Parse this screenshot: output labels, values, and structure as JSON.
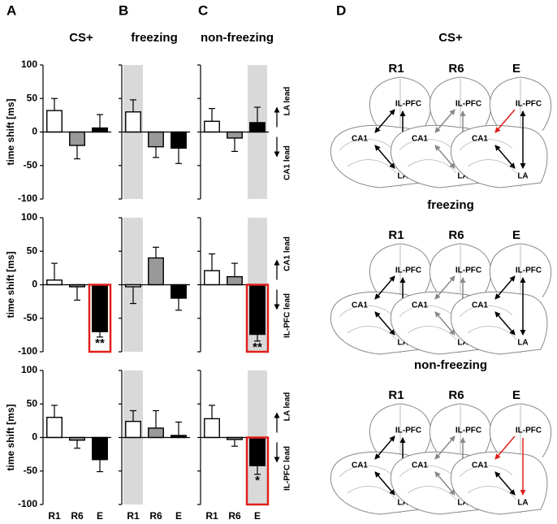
{
  "panel_labels": [
    "A",
    "B",
    "C",
    "D"
  ],
  "column_titles": [
    "CS+",
    "freezing",
    "non-freezing"
  ],
  "chart_data": [
    {
      "type": "bar",
      "categories": [
        null,
        null,
        null
      ],
      "values": [
        32,
        -20,
        6
      ],
      "errors": [
        18,
        20,
        20
      ],
      "colors": [
        "#ffffff",
        "#999999",
        "#000000"
      ],
      "ylim": [
        -100,
        100
      ],
      "yticks": [
        -100,
        -50,
        0,
        50,
        100
      ],
      "show_ytick_labels": true,
      "ylabel": "time shift [ms]"
    },
    {
      "type": "bar",
      "categories": [
        null,
        null,
        null
      ],
      "values": [
        30,
        -22,
        -24
      ],
      "errors": [
        18,
        16,
        23
      ],
      "colors": [
        "#ffffff",
        "#999999",
        "#000000"
      ],
      "ylim": [
        -100,
        100
      ],
      "yticks": [
        -100,
        -50,
        0,
        50,
        100
      ],
      "show_ytick_labels": false,
      "shade": 0
    },
    {
      "type": "bar",
      "categories": [
        null,
        null,
        null
      ],
      "values": [
        16,
        -9,
        14
      ],
      "errors": [
        19,
        20,
        23
      ],
      "colors": [
        "#ffffff",
        "#999999",
        "#000000"
      ],
      "ylim": [
        -100,
        100
      ],
      "yticks": [
        -100,
        -50,
        0,
        50,
        100
      ],
      "show_ytick_labels": false,
      "shade": 2,
      "lead_up": "LA lead",
      "lead_down": "CA1 lead"
    },
    {
      "type": "bar",
      "categories": [
        null,
        null,
        null
      ],
      "values": [
        7,
        -3,
        -70
      ],
      "errors": [
        25,
        20,
        8
      ],
      "colors": [
        "#ffffff",
        "#999999",
        "#000000"
      ],
      "ylim": [
        -100,
        100
      ],
      "yticks": [
        -100,
        -50,
        0,
        50,
        100
      ],
      "show_ytick_labels": true,
      "ylabel": "time shift [ms]",
      "highlight": 2,
      "annotation": "**"
    },
    {
      "type": "bar",
      "categories": [
        null,
        null,
        null
      ],
      "values": [
        -3,
        40,
        -20
      ],
      "errors": [
        25,
        16,
        18
      ],
      "colors": [
        "#ffffff",
        "#999999",
        "#000000"
      ],
      "ylim": [
        -100,
        100
      ],
      "yticks": [
        -100,
        -50,
        0,
        50,
        100
      ],
      "show_ytick_labels": false,
      "shade": 0
    },
    {
      "type": "bar",
      "categories": [
        null,
        null,
        null
      ],
      "values": [
        21,
        12,
        -74
      ],
      "errors": [
        25,
        20,
        10
      ],
      "colors": [
        "#ffffff",
        "#999999",
        "#000000"
      ],
      "ylim": [
        -100,
        100
      ],
      "yticks": [
        -100,
        -50,
        0,
        50,
        100
      ],
      "show_ytick_labels": false,
      "shade": 2,
      "highlight": 2,
      "annotation": "**",
      "lead_up": "CA1 lead",
      "lead_down": "IL-PFC lead"
    },
    {
      "type": "bar",
      "categories": [
        "R1",
        "R6",
        "E"
      ],
      "values": [
        30,
        -4,
        -33
      ],
      "errors": [
        18,
        12,
        18
      ],
      "colors": [
        "#ffffff",
        "#999999",
        "#000000"
      ],
      "ylim": [
        -100,
        100
      ],
      "yticks": [
        -100,
        -50,
        0,
        50,
        100
      ],
      "show_ytick_labels": true,
      "ylabel": "time shift [ms]"
    },
    {
      "type": "bar",
      "categories": [
        "R1",
        "R6",
        "E"
      ],
      "values": [
        24,
        14,
        3
      ],
      "errors": [
        16,
        26,
        20
      ],
      "colors": [
        "#ffffff",
        "#999999",
        "#000000"
      ],
      "ylim": [
        -100,
        100
      ],
      "yticks": [
        -100,
        -50,
        0,
        50,
        100
      ],
      "show_ytick_labels": false,
      "shade": 0
    },
    {
      "type": "bar",
      "categories": [
        "R1",
        "R6",
        "E"
      ],
      "values": [
        28,
        -3,
        -42
      ],
      "errors": [
        20,
        10,
        13
      ],
      "colors": [
        "#ffffff",
        "#999999",
        "#000000"
      ],
      "ylim": [
        -100,
        100
      ],
      "yticks": [
        -100,
        -50,
        0,
        50,
        100
      ],
      "show_ytick_labels": false,
      "shade": 2,
      "highlight": 2,
      "annotation": "*",
      "lead_up": "LA lead",
      "lead_down": "IL-PFC lead"
    }
  ],
  "diagram": {
    "titles": [
      "CS+",
      "freezing",
      "non-freezing"
    ],
    "columns": [
      "R1",
      "R6",
      "E"
    ],
    "regions": [
      "IL-PFC",
      "CA1",
      "LA"
    ]
  }
}
